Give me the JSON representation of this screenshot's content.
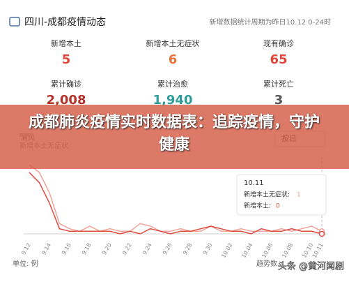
{
  "header": {
    "title": "四川-成都疫情动态",
    "note": "新增数据统计周期为昨日10.12 0-24时"
  },
  "stats": [
    {
      "label": "新增本土",
      "value": "5",
      "color": "#e0483d"
    },
    {
      "label": "新增本土无症状",
      "value": "6",
      "color": "#e8743b"
    },
    {
      "label": "现有确诊",
      "value": "65",
      "color": "#e0483d"
    },
    {
      "label": "累计确诊",
      "value": "2,008",
      "color": "#b5312b"
    },
    {
      "label": "累计治愈",
      "value": "1,940",
      "color": "#2f9e9a"
    },
    {
      "label": "累计死亡",
      "value": "3",
      "color": "#555555"
    }
  ],
  "banner": "成都肺炎疫情实时数据表：追踪疫情，守护健康",
  "controls": {
    "legend_hidden": "高风",
    "period": "按日"
  },
  "tooltip": {
    "labels": [
      "新增本土无症状:",
      "新增本土:"
    ]
  },
  "footer": {
    "unit": "单位: 例",
    "source": "趋势数",
    "watermark": "头条 @黄河闻剧"
  },
  "chart_data": {
    "type": "line",
    "x": [
      "9.12",
      null,
      "9.14",
      null,
      "9.16",
      null,
      "9.18",
      null,
      "9.20",
      null,
      "9.22",
      null,
      "9.24",
      null,
      "9.26",
      null,
      "9.28",
      null,
      "9.30",
      null,
      "10.02",
      null,
      "10.04",
      null,
      "10.06",
      null,
      "10.08",
      null,
      "10.10",
      "10.11"
    ],
    "series": [
      {
        "name": "新增本土无症状",
        "color": "#f0a39a",
        "values": [
          27,
          24,
          16,
          4,
          2,
          1,
          3,
          1,
          2,
          1,
          1,
          4,
          3,
          1,
          1,
          2,
          1,
          1,
          3,
          1,
          1,
          2,
          1,
          1,
          1,
          2,
          1,
          2,
          3,
          1
        ]
      },
      {
        "name": "新增本土",
        "color": "#e0483d",
        "values": [
          24,
          20,
          12,
          2,
          1,
          1,
          1,
          1,
          1,
          0,
          1,
          0,
          2,
          1,
          0,
          1,
          1,
          2,
          3,
          2,
          1,
          1,
          0,
          2,
          1,
          1,
          2,
          1,
          1,
          0
        ]
      }
    ],
    "ylim": [
      0,
      30
    ]
  }
}
